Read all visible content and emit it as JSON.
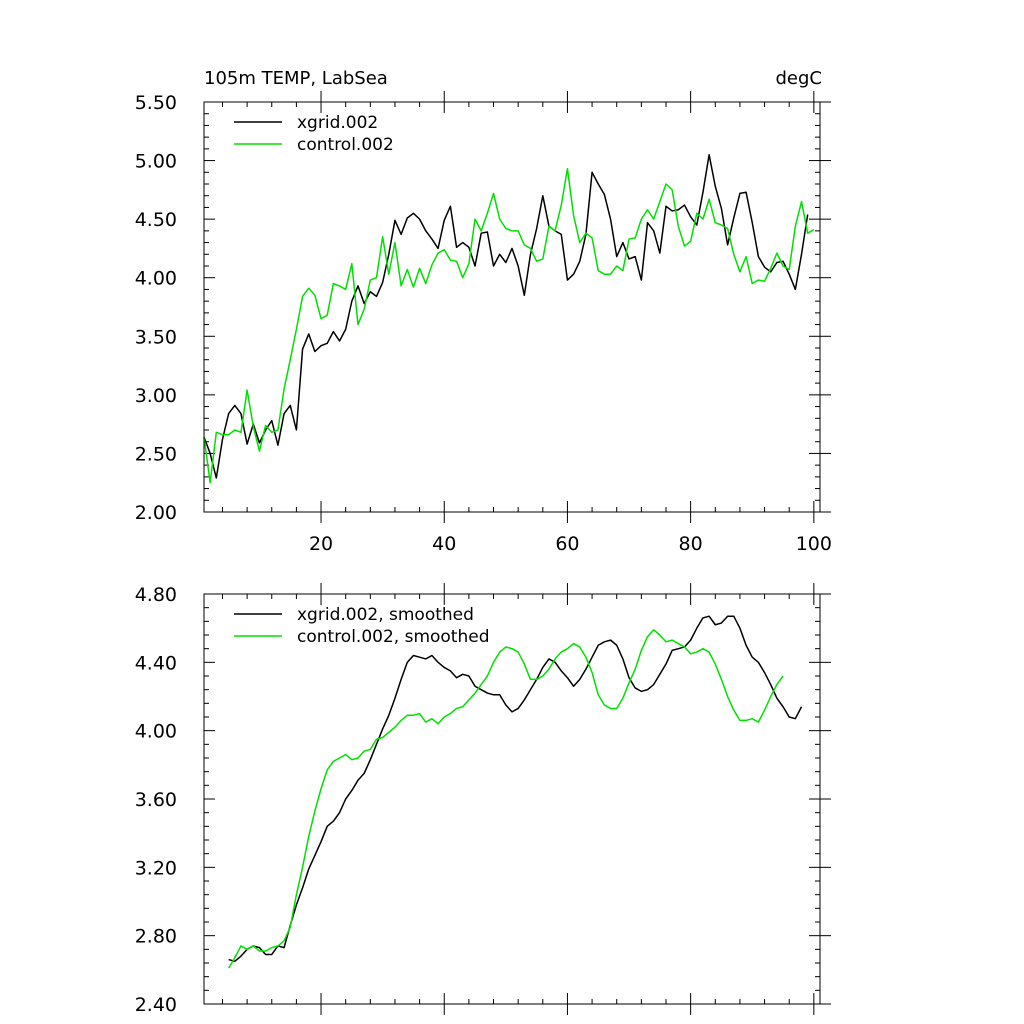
{
  "chart_data": [
    {
      "type": "line",
      "title": "105m TEMP, LabSea",
      "units": "degC",
      "xlim": [
        1,
        101
      ],
      "ylim": [
        2.0,
        5.5
      ],
      "xticks": [
        20,
        40,
        60,
        80,
        100
      ],
      "xtick_labels": [
        "20",
        "40",
        "60",
        "80",
        "100"
      ],
      "yticks": [
        2.0,
        2.5,
        3.0,
        3.5,
        4.0,
        4.5,
        5.0,
        5.5
      ],
      "ytick_labels": [
        "2.00",
        "2.50",
        "3.00",
        "3.50",
        "4.00",
        "4.50",
        "5.00",
        "5.50"
      ],
      "legend_position": "top-left",
      "grid": false,
      "series": [
        {
          "name": "xgrid.002",
          "color": "#000000",
          "x_start": 1,
          "values": [
            2.64,
            2.5,
            2.29,
            2.62,
            2.84,
            2.91,
            2.84,
            2.58,
            2.75,
            2.59,
            2.7,
            2.78,
            2.57,
            2.84,
            2.91,
            2.7,
            3.39,
            3.52,
            3.37,
            3.42,
            3.44,
            3.54,
            3.46,
            3.56,
            3.8,
            3.93,
            3.78,
            3.88,
            3.84,
            3.96,
            4.2,
            4.49,
            4.37,
            4.51,
            4.55,
            4.5,
            4.4,
            4.33,
            4.25,
            4.49,
            4.61,
            4.26,
            4.3,
            4.26,
            4.1,
            4.38,
            4.39,
            4.1,
            4.2,
            4.13,
            4.25,
            4.1,
            3.85,
            4.2,
            4.42,
            4.7,
            4.44,
            4.4,
            4.37,
            3.98,
            4.03,
            4.14,
            4.37,
            4.9,
            4.8,
            4.71,
            4.5,
            4.18,
            4.3,
            4.16,
            4.18,
            3.98,
            4.47,
            4.4,
            4.21,
            4.61,
            4.57,
            4.58,
            4.62,
            4.52,
            4.45,
            4.73,
            5.05,
            4.78,
            4.59,
            4.28,
            4.51,
            4.72,
            4.73,
            4.47,
            4.18,
            4.09,
            4.05,
            4.13,
            4.14,
            4.03,
            3.9,
            4.2,
            4.54
          ]
        },
        {
          "name": "control.002",
          "color": "#00e000",
          "x_start": 1,
          "values": [
            2.64,
            2.25,
            2.68,
            2.66,
            2.66,
            2.7,
            2.68,
            3.04,
            2.73,
            2.52,
            2.74,
            2.68,
            2.7,
            3.05,
            3.3,
            3.56,
            3.84,
            3.91,
            3.85,
            3.65,
            3.68,
            3.95,
            3.93,
            3.9,
            4.12,
            3.6,
            3.73,
            3.98,
            4.0,
            4.35,
            4.03,
            4.3,
            3.93,
            4.07,
            3.92,
            4.08,
            3.95,
            4.11,
            4.21,
            4.24,
            4.15,
            4.14,
            4.0,
            4.12,
            4.5,
            4.4,
            4.55,
            4.72,
            4.5,
            4.42,
            4.4,
            4.4,
            4.28,
            4.25,
            4.14,
            4.16,
            4.44,
            4.4,
            4.62,
            4.93,
            4.53,
            4.3,
            4.38,
            4.34,
            4.06,
            4.03,
            4.03,
            4.1,
            4.06,
            4.33,
            4.34,
            4.5,
            4.58,
            4.5,
            4.65,
            4.8,
            4.75,
            4.44,
            4.27,
            4.31,
            4.55,
            4.5,
            4.67,
            4.47,
            4.45,
            4.42,
            4.2,
            4.05,
            4.18,
            3.95,
            3.98,
            3.97,
            4.08,
            4.21,
            4.1,
            4.07,
            4.44,
            4.65,
            4.38,
            4.41
          ]
        }
      ]
    },
    {
      "type": "line",
      "title": "",
      "xlim": [
        1,
        101
      ],
      "ylim": [
        2.4,
        4.8
      ],
      "xticks": [
        20,
        40,
        60,
        80,
        100
      ],
      "xtick_labels": [],
      "yticks": [
        2.4,
        2.8,
        3.2,
        3.6,
        4.0,
        4.4,
        4.8
      ],
      "ytick_labels": [
        "2.40",
        "2.80",
        "3.20",
        "3.60",
        "4.00",
        "4.40",
        "4.80"
      ],
      "legend_position": "top-left",
      "grid": false,
      "series": [
        {
          "name": "xgrid.002, smoothed",
          "color": "#000000",
          "x_start": 5,
          "values": [
            2.66,
            2.65,
            2.68,
            2.72,
            2.74,
            2.73,
            2.69,
            2.69,
            2.74,
            2.73,
            2.86,
            2.98,
            3.08,
            3.19,
            3.27,
            3.35,
            3.44,
            3.47,
            3.52,
            3.6,
            3.65,
            3.71,
            3.75,
            3.83,
            3.92,
            4.01,
            4.09,
            4.19,
            4.3,
            4.4,
            4.44,
            4.43,
            4.42,
            4.44,
            4.4,
            4.37,
            4.35,
            4.31,
            4.33,
            4.32,
            4.26,
            4.24,
            4.22,
            4.21,
            4.21,
            4.15,
            4.11,
            4.13,
            4.18,
            4.24,
            4.3,
            4.37,
            4.42,
            4.4,
            4.35,
            4.31,
            4.26,
            4.3,
            4.36,
            4.43,
            4.5,
            4.52,
            4.53,
            4.5,
            4.42,
            4.31,
            4.25,
            4.23,
            4.24,
            4.27,
            4.33,
            4.39,
            4.47,
            4.48,
            4.49,
            4.53,
            4.6,
            4.66,
            4.67,
            4.62,
            4.63,
            4.67,
            4.67,
            4.6,
            4.5,
            4.43,
            4.4,
            4.34,
            4.27,
            4.19,
            4.14,
            4.08,
            4.07,
            4.14
          ]
        },
        {
          "name": "control.002, smoothed",
          "color": "#00e000",
          "x_start": 5,
          "values": [
            2.61,
            2.67,
            2.74,
            2.72,
            2.74,
            2.71,
            2.71,
            2.73,
            2.74,
            2.77,
            2.85,
            3.04,
            3.2,
            3.38,
            3.53,
            3.66,
            3.77,
            3.82,
            3.84,
            3.86,
            3.83,
            3.84,
            3.88,
            3.89,
            3.95,
            3.96,
            3.99,
            4.02,
            4.06,
            4.09,
            4.09,
            4.1,
            4.05,
            4.07,
            4.04,
            4.08,
            4.1,
            4.13,
            4.14,
            4.18,
            4.22,
            4.27,
            4.32,
            4.4,
            4.46,
            4.49,
            4.48,
            4.46,
            4.39,
            4.3,
            4.3,
            4.32,
            4.36,
            4.42,
            4.46,
            4.48,
            4.51,
            4.49,
            4.43,
            4.34,
            4.21,
            4.15,
            4.13,
            4.13,
            4.19,
            4.28,
            4.36,
            4.47,
            4.55,
            4.59,
            4.56,
            4.52,
            4.53,
            4.51,
            4.49,
            4.45,
            4.46,
            4.48,
            4.46,
            4.39,
            4.3,
            4.2,
            4.12,
            4.06,
            4.06,
            4.07,
            4.05,
            4.12,
            4.2,
            4.27,
            4.32
          ]
        }
      ]
    }
  ]
}
